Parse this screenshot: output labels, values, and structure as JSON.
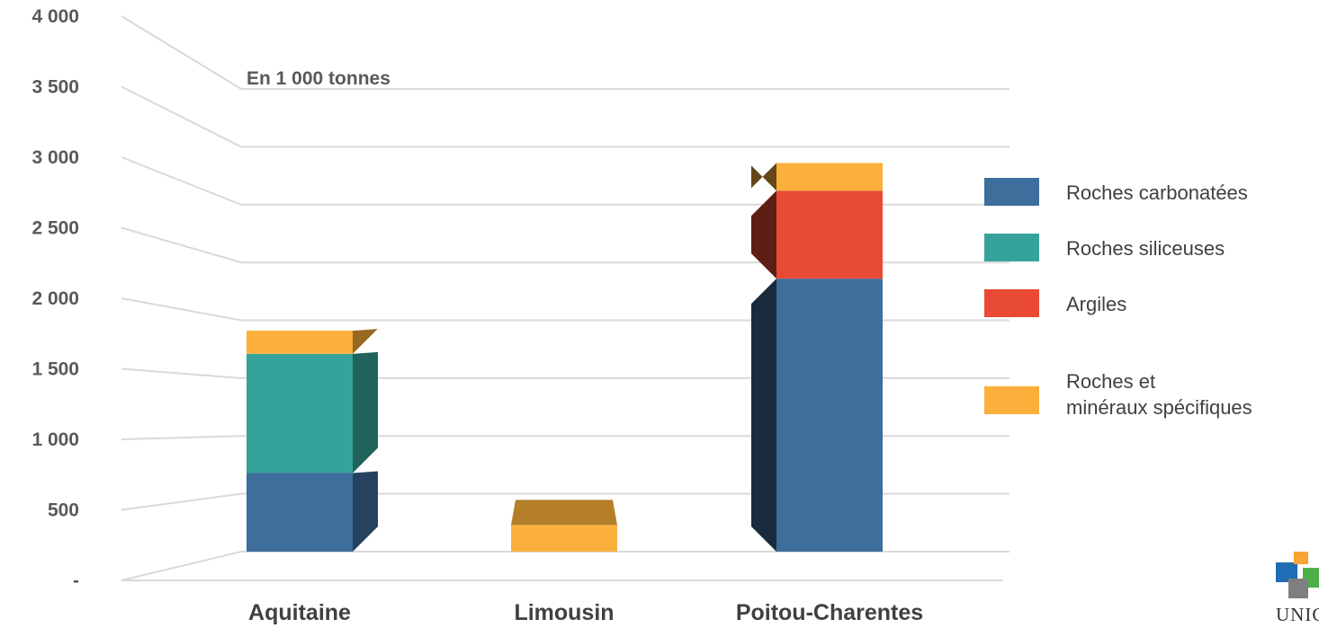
{
  "chart_data": {
    "type": "bar",
    "stacked": true,
    "unit_label": "En 1 000 tonnes",
    "categories": [
      "Aquitaine",
      "Limousin",
      "Poitou-Charentes"
    ],
    "series": [
      {
        "name": "Roches carbonatées",
        "color": "#3E6E9C",
        "values": [
          680,
          0,
          2360
        ]
      },
      {
        "name": "Roches siliceuses",
        "color": "#35A39A",
        "values": [
          1030,
          0,
          0
        ]
      },
      {
        "name": "Argiles",
        "color": "#E84A35",
        "values": [
          0,
          0,
          760
        ]
      },
      {
        "name": "Roches et\nminéraux spécifiques",
        "color": "#FBB03B",
        "values": [
          200,
          230,
          240
        ]
      }
    ],
    "yticks": [
      "-",
      "500",
      "1 000",
      "1 500",
      "2 000",
      "2 500",
      "3 000",
      "3 500",
      "4 000"
    ],
    "ylim": [
      0,
      4000
    ],
    "grid": true,
    "legend_position": "right"
  },
  "logo": {
    "text": "UNICE"
  }
}
